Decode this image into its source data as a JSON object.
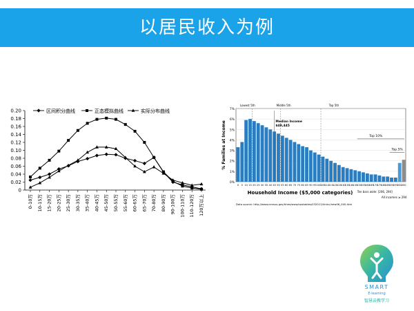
{
  "slide": {
    "title": "以居民收入为例",
    "banner_color": "#1aa3e8"
  },
  "logo": {
    "word": "SMART",
    "sub": "E-learning",
    "cn": "智慧云教学习"
  },
  "chart_data": [
    {
      "type": "line",
      "categories": [
        "0-10万",
        "10-15万",
        "15-20万",
        "20-25万",
        "25-30万",
        "30-35万",
        "35-40万",
        "40-45万",
        "45-50万",
        "50-55万",
        "55-60万",
        "60-65万",
        "65-70万",
        "70-80万",
        "80-90万",
        "90-100万",
        "100-110万",
        "110-120万",
        "120万以上"
      ],
      "series": [
        {
          "name": "区间积分曲线",
          "marker": "diamond",
          "values": [
            0.025,
            0.032,
            0.04,
            0.053,
            0.061,
            0.072,
            0.079,
            0.087,
            0.09,
            0.089,
            0.08,
            0.074,
            0.067,
            0.082,
            0.045,
            0.02,
            0.013,
            0.008,
            0.003
          ]
        },
        {
          "name": "正态模拟曲线",
          "marker": "square",
          "values": [
            0.033,
            0.055,
            0.075,
            0.098,
            0.125,
            0.15,
            0.168,
            0.178,
            0.181,
            0.178,
            0.165,
            0.148,
            0.12,
            0.082,
            0.046,
            0.022,
            0.01,
            0.005,
            0.002
          ]
        },
        {
          "name": "实际分布曲线",
          "marker": "triangle",
          "values": [
            0.007,
            0.018,
            0.032,
            0.048,
            0.062,
            0.075,
            0.095,
            0.108,
            0.108,
            0.104,
            0.082,
            0.06,
            0.046,
            0.058,
            0.042,
            0.025,
            0.018,
            0.012,
            0.015
          ]
        }
      ],
      "yticks": [
        "0",
        "0.02",
        "0.04",
        "0.06",
        "0.08",
        "0.10",
        "0.12",
        "0.14",
        "0.16",
        "0.18",
        "0.20"
      ],
      "ylim": [
        0,
        0.2
      ]
    },
    {
      "type": "bar",
      "ylabel": "% Families at Income",
      "xlabel": "Household Income ($5,000 categories)",
      "yticks": [
        "0%",
        "1%",
        "2%",
        "3%",
        "4%",
        "5%",
        "6%",
        "7%"
      ],
      "ylim": [
        0,
        7
      ],
      "xticks": [
        "0",
        "5",
        "10",
        "15",
        "20",
        "25",
        "30",
        "35",
        "40",
        "45",
        "50",
        "55",
        "60",
        "65",
        "70",
        "75",
        "80",
        "85",
        "90",
        "95",
        "100",
        "105",
        "110",
        "115",
        "120",
        "125",
        "130",
        "135",
        "140",
        "145",
        "150",
        "155",
        "160",
        "165",
        "170",
        "175",
        "180",
        "185",
        "190",
        "195",
        "200",
        "250"
      ],
      "values": [
        3.3,
        3.8,
        5.9,
        6.0,
        5.8,
        5.6,
        5.4,
        5.2,
        5.0,
        4.8,
        4.6,
        4.4,
        4.2,
        4.0,
        3.8,
        3.6,
        3.4,
        3.3,
        3.0,
        2.8,
        2.6,
        2.4,
        2.2,
        2.0,
        1.8,
        1.6,
        1.4,
        1.3,
        1.2,
        1.1,
        1.0,
        0.9,
        0.8,
        0.7,
        0.7,
        0.6,
        0.5,
        0.5,
        0.4,
        0.4,
        1.8,
        2.1
      ],
      "annotations": {
        "lowest": "Lowest 5th",
        "middle": "Middle 5th",
        "top": "Top 5th",
        "median": "Median Income",
        "median_value": "$49,445",
        "top10": "Top 10%",
        "top5": "Top 5%",
        "ten_bars": "Ten bars wide: [206, 294]",
        "all_incomes": "All incomes ≥ 294"
      },
      "source": "Data source:  http://www.census.gov/hhes/www/cpstables/032011/hhinc/new06_000.htm",
      "bar_color": "#2a7dc0",
      "last_bar_color": "#8c8c8c"
    }
  ]
}
